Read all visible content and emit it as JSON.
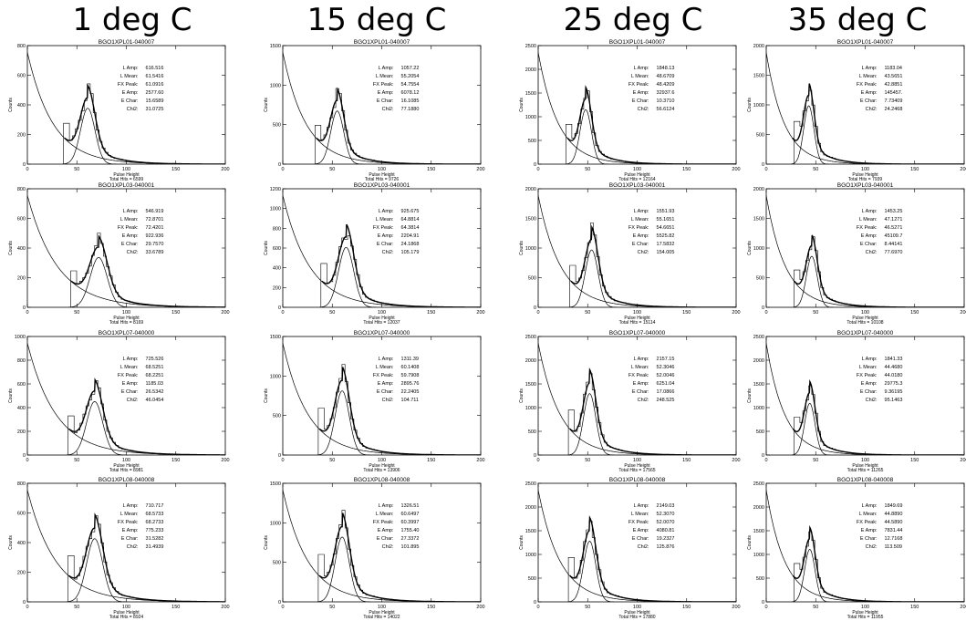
{
  "headers": [
    "1 deg C",
    "15 deg C",
    "25 deg C",
    "35 deg C"
  ],
  "stat_labels": [
    "L Amp:",
    "L Mean:",
    "FX Peak:",
    "E Amp:",
    "E Char:",
    "Chi2:"
  ],
  "xlabel": "Pulse Height",
  "ylabel": "Counts",
  "hits_prefix": "Total Hits = ",
  "colors": {
    "ink": "#000000",
    "background": "#ffffff"
  },
  "chart_data": [
    {
      "type": "line",
      "col": 0,
      "row": 0,
      "title": "BGO1XPL01-040007",
      "xlim": [
        0,
        200
      ],
      "ylim": [
        0,
        800
      ],
      "yticks": [
        0,
        200,
        400,
        600,
        800
      ],
      "xticks": [
        0,
        50,
        100,
        150,
        200
      ],
      "total_hits": "6599",
      "fx_peak": 61,
      "peak": 460,
      "l_amp": "616.516",
      "l_mean": "61.5416",
      "fx_peak_text": "61.0916",
      "e_amp": "2577.60",
      "e_char": "15.6589",
      "chi2": "31.0725"
    },
    {
      "type": "line",
      "col": 1,
      "row": 0,
      "title": "BGO1XPL01-040007",
      "xlim": [
        0,
        200
      ],
      "ylim": [
        0,
        1500
      ],
      "yticks": [
        0,
        500,
        1000,
        1500
      ],
      "xticks": [
        0,
        50,
        100,
        150,
        200
      ],
      "total_hits": "9726",
      "fx_peak": 55,
      "peak": 820,
      "l_amp": "1057.22",
      "l_mean": "55.2054",
      "fx_peak_text": "54.7554",
      "e_amp": "6078.12",
      "e_char": "16.1085",
      "chi2": "77.1880"
    },
    {
      "type": "line",
      "col": 2,
      "row": 0,
      "title": "BGO1XPL01-040007",
      "xlim": [
        0,
        200
      ],
      "ylim": [
        0,
        2500
      ],
      "yticks": [
        0,
        500,
        1000,
        1500,
        2000,
        2500
      ],
      "xticks": [
        0,
        50,
        100,
        150,
        200
      ],
      "total_hits": "12164",
      "fx_peak": 48,
      "peak": 1400,
      "l_amp": "1848.13",
      "l_mean": "48.6709",
      "fx_peak_text": "48.4209",
      "e_amp": "32937.6",
      "e_char": "10.3710",
      "chi2": "56.6124"
    },
    {
      "type": "line",
      "col": 3,
      "row": 0,
      "title": "BGO1XPL01-040007",
      "xlim": [
        0,
        200
      ],
      "ylim": [
        0,
        2000
      ],
      "yticks": [
        0,
        500,
        1000,
        1500,
        2000
      ],
      "xticks": [
        0,
        50,
        100,
        150,
        200
      ],
      "total_hits": "7939",
      "fx_peak": 43,
      "peak": 1200,
      "l_amp": "1183.04",
      "l_mean": "43.5651",
      "fx_peak_text": "42.8851",
      "e_amp": "145457.",
      "e_char": "7.73409",
      "chi2": "24.2468"
    },
    {
      "type": "line",
      "col": 0,
      "row": 1,
      "title": "BGO1XPL03-040001",
      "xlim": [
        0,
        200
      ],
      "ylim": [
        0,
        800
      ],
      "yticks": [
        0,
        200,
        400,
        600,
        800
      ],
      "xticks": [
        0,
        50,
        100,
        150,
        200
      ],
      "total_hits": "8169",
      "fx_peak": 72,
      "peak": 410,
      "l_amp": "546.919",
      "l_mean": "72.8701",
      "fx_peak_text": "72.4201",
      "e_amp": "922.936",
      "e_char": "29.7570",
      "chi2": "33.6789"
    },
    {
      "type": "line",
      "col": 1,
      "row": 1,
      "title": "BGO1XPL03-040001",
      "xlim": [
        0,
        200
      ],
      "ylim": [
        0,
        1200
      ],
      "yticks": [
        0,
        200,
        400,
        600,
        800,
        1000,
        1200
      ],
      "xticks": [
        0,
        50,
        100,
        150,
        200
      ],
      "total_hits": "12037",
      "fx_peak": 64,
      "peak": 740,
      "l_amp": "925.675",
      "l_mean": "64.8814",
      "fx_peak_text": "64.3814",
      "e_amp": "2204.91",
      "e_char": "24.1868",
      "chi2": "105.179"
    },
    {
      "type": "line",
      "col": 2,
      "row": 1,
      "title": "BGO1XPL03-040001",
      "xlim": [
        0,
        200
      ],
      "ylim": [
        0,
        2000
      ],
      "yticks": [
        0,
        500,
        1000,
        1500,
        2000
      ],
      "xticks": [
        0,
        50,
        100,
        150,
        200
      ],
      "total_hits": "15114",
      "fx_peak": 54,
      "peak": 1180,
      "l_amp": "1551.93",
      "l_mean": "55.1651",
      "fx_peak_text": "54.6651",
      "e_amp": "5525.82",
      "e_char": "17.5832",
      "chi2": "154.005"
    },
    {
      "type": "line",
      "col": 3,
      "row": 1,
      "title": "BGO1XPL03-040001",
      "xlim": [
        0,
        200
      ],
      "ylim": [
        0,
        2000
      ],
      "yticks": [
        0,
        500,
        1000,
        1500,
        2000
      ],
      "xticks": [
        0,
        50,
        100,
        150,
        200
      ],
      "total_hits": "10108",
      "fx_peak": 46,
      "peak": 1050,
      "l_amp": "1453.25",
      "l_mean": "47.1271",
      "fx_peak_text": "46.5271",
      "e_amp": "45109.7",
      "e_char": "8.44141",
      "chi2": "77.6970"
    },
    {
      "type": "line",
      "col": 0,
      "row": 2,
      "title": "BGO1XPL07-040000",
      "xlim": [
        0,
        200
      ],
      "ylim": [
        0,
        1000
      ],
      "yticks": [
        0,
        200,
        400,
        600,
        800,
        1000
      ],
      "xticks": [
        0,
        50,
        100,
        150,
        200
      ],
      "total_hits": "8981",
      "fx_peak": 68,
      "peak": 550,
      "l_amp": "725.526",
      "l_mean": "68.5251",
      "fx_peak_text": "68.2251",
      "e_amp": "1185.03",
      "e_char": "26.5342",
      "chi2": "46.0454"
    },
    {
      "type": "line",
      "col": 1,
      "row": 2,
      "title": "BGO1XPL07-040000",
      "xlim": [
        0,
        200
      ],
      "ylim": [
        0,
        1500
      ],
      "yticks": [
        0,
        500,
        1000,
        1500
      ],
      "xticks": [
        0,
        50,
        100,
        150,
        200
      ],
      "total_hits": "13906",
      "fx_peak": 60,
      "peak": 990,
      "l_amp": "1311.39",
      "l_mean": "60.1408",
      "fx_peak_text": "59.7908",
      "e_amp": "2895.76",
      "e_char": "22.2405",
      "chi2": "104.711"
    },
    {
      "type": "line",
      "col": 2,
      "row": 2,
      "title": "BGO1XPL07-040000",
      "xlim": [
        0,
        200
      ],
      "ylim": [
        0,
        2500
      ],
      "yticks": [
        0,
        500,
        1000,
        1500,
        2000,
        2500
      ],
      "xticks": [
        0,
        50,
        100,
        150,
        200
      ],
      "total_hits": "17565",
      "fx_peak": 52,
      "peak": 1580,
      "l_amp": "2157.15",
      "l_mean": "52.3046",
      "fx_peak_text": "52.0046",
      "e_amp": "6251.04",
      "e_char": "17.0866",
      "chi2": "248.525"
    },
    {
      "type": "line",
      "col": 3,
      "row": 2,
      "title": "BGO1XPL07-040000",
      "xlim": [
        0,
        200
      ],
      "ylim": [
        0,
        2500
      ],
      "yticks": [
        0,
        500,
        1000,
        1500,
        2000,
        2500
      ],
      "xticks": [
        0,
        50,
        100,
        150,
        200
      ],
      "total_hits": "11265",
      "fx_peak": 44,
      "peak": 1330,
      "l_amp": "1841.33",
      "l_mean": "44.4680",
      "fx_peak_text": "44.0180",
      "e_amp": "29775.3",
      "e_char": "9.36195",
      "chi2": "95.1463"
    },
    {
      "type": "line",
      "col": 0,
      "row": 3,
      "title": "BGO1XPL08-040008",
      "xlim": [
        0,
        200
      ],
      "ylim": [
        0,
        800
      ],
      "yticks": [
        0,
        200,
        400,
        600,
        800
      ],
      "xticks": [
        0,
        50,
        100,
        150,
        200
      ],
      "total_hits": "8924",
      "fx_peak": 68,
      "peak": 520,
      "l_amp": "710.717",
      "l_mean": "68.5733",
      "fx_peak_text": "68.2733",
      "e_amp": "775.233",
      "e_char": "31.5282",
      "chi2": "31.4939"
    },
    {
      "type": "line",
      "col": 1,
      "row": 3,
      "title": "BGO1XPL08-040008",
      "xlim": [
        0,
        200
      ],
      "ylim": [
        0,
        1500
      ],
      "yticks": [
        0,
        500,
        1000,
        1500
      ],
      "xticks": [
        0,
        50,
        100,
        150,
        200
      ],
      "total_hits": "14022",
      "fx_peak": 60,
      "peak": 1000,
      "l_amp": "1326.51",
      "l_mean": "60.6497",
      "fx_peak_text": "60.3997",
      "e_amp": "1755.40",
      "e_char": "27.3372",
      "chi2": "101.895"
    },
    {
      "type": "line",
      "col": 2,
      "row": 3,
      "title": "BGO1XPL08-040008",
      "xlim": [
        0,
        200
      ],
      "ylim": [
        0,
        2500
      ],
      "yticks": [
        0,
        500,
        1000,
        1500,
        2000,
        2500
      ],
      "xticks": [
        0,
        50,
        100,
        150,
        200
      ],
      "total_hits": "17880",
      "fx_peak": 52,
      "peak": 1560,
      "l_amp": "2149.03",
      "l_mean": "52.3070",
      "fx_peak_text": "52.0070",
      "e_amp": "4080.81",
      "e_char": "19.2327",
      "chi2": "125.876"
    },
    {
      "type": "line",
      "col": 3,
      "row": 3,
      "title": "BGO1XPL08-040008",
      "xlim": [
        0,
        200
      ],
      "ylim": [
        0,
        2500
      ],
      "yticks": [
        0,
        500,
        1000,
        1500,
        2000,
        2500
      ],
      "xticks": [
        0,
        50,
        100,
        150,
        200
      ],
      "total_hits": "11955",
      "fx_peak": 44,
      "peak": 1350,
      "l_amp": "1849.69",
      "l_mean": "44.8890",
      "fx_peak_text": "44.5890",
      "e_amp": "7831.44",
      "e_char": "12.7168",
      "chi2": "113.509"
    }
  ]
}
